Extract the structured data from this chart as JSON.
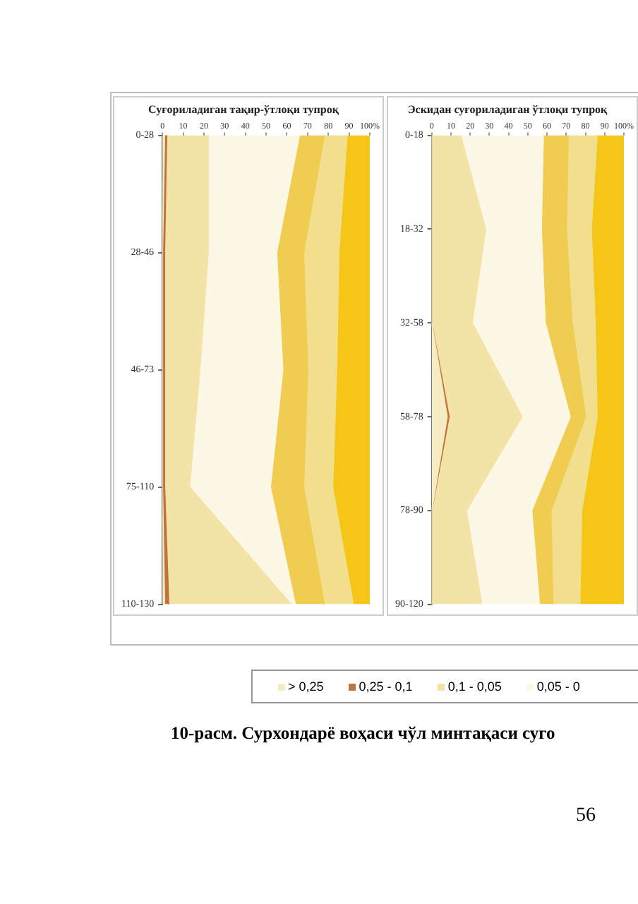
{
  "chart_data": [
    {
      "type": "area",
      "orientation": "horizontal",
      "stacked": true,
      "title": "Суғориладиган тақир-ўтлоқи тупроқ",
      "categories": [
        "0-28",
        "28-46",
        "46-73",
        "75-110",
        "110-130"
      ],
      "xlim": [
        0,
        100
      ],
      "xticks": [
        0,
        10,
        20,
        30,
        40,
        50,
        60,
        70,
        80,
        90,
        {
          "value": 100,
          "label": "100%"
        }
      ],
      "series": [
        {
          "color": "#f6ecc4",
          "values": [
            1,
            0,
            0,
            0,
            1
          ]
        },
        {
          "color": "#c0733a",
          "values": [
            1,
            1,
            1,
            1,
            2
          ]
        },
        {
          "color": "#f3e3a6",
          "values": [
            20,
            21,
            17,
            12,
            59
          ]
        },
        {
          "color": "#fdf8e6",
          "values": [
            44,
            33,
            40,
            39,
            2
          ]
        },
        {
          "color": "#f0cd50",
          "values": [
            12,
            13,
            12,
            16,
            14
          ]
        },
        {
          "color": "#f2df8e",
          "values": [
            11,
            17,
            14,
            14,
            14
          ]
        },
        {
          "color": "#f5c518",
          "values": [
            11,
            15,
            16,
            18,
            8
          ]
        }
      ]
    },
    {
      "type": "area",
      "orientation": "horizontal",
      "stacked": true,
      "title": "Эскидан суғориладиган ўтлоқи тупроқ",
      "categories": [
        "0-18",
        "18-32",
        "32-58",
        "58-78",
        "78-90",
        "90-120"
      ],
      "xlim": [
        0,
        100
      ],
      "xticks": [
        0,
        10,
        20,
        30,
        40,
        50,
        60,
        70,
        80,
        90,
        {
          "value": 100,
          "label": "100%"
        }
      ],
      "legend": "bottom",
      "annotations": [
        "10-расм. Сурхондарё воҳаси чўл минтақаси суго",
        "56"
      ],
      "series": [
        {
          "name": "> 0,25",
          "color": "#f6ecc4",
          "values": [
            0,
            0,
            0,
            8,
            0,
            0
          ]
        },
        {
          "name": "0,25 - 0,1",
          "color": "#c0733a",
          "values": [
            0,
            0,
            0,
            1,
            0,
            0
          ]
        },
        {
          "name": "0,1 - 0,05",
          "color": "#f3e3a6",
          "values": [
            15,
            28,
            21,
            38,
            18,
            26
          ]
        },
        {
          "name": "0,05 - 0",
          "color": "#fdf8e6",
          "values": [
            43,
            29,
            38,
            25,
            34,
            30
          ]
        },
        {
          "color": "#f0cd50",
          "values": [
            13,
            13,
            14,
            8,
            10,
            7
          ]
        },
        {
          "color": "#f2df8e",
          "values": [
            15,
            13,
            12,
            6,
            16,
            14
          ]
        },
        {
          "color": "#f5c518",
          "values": [
            14,
            17,
            15,
            14,
            22,
            23
          ]
        }
      ]
    }
  ]
}
